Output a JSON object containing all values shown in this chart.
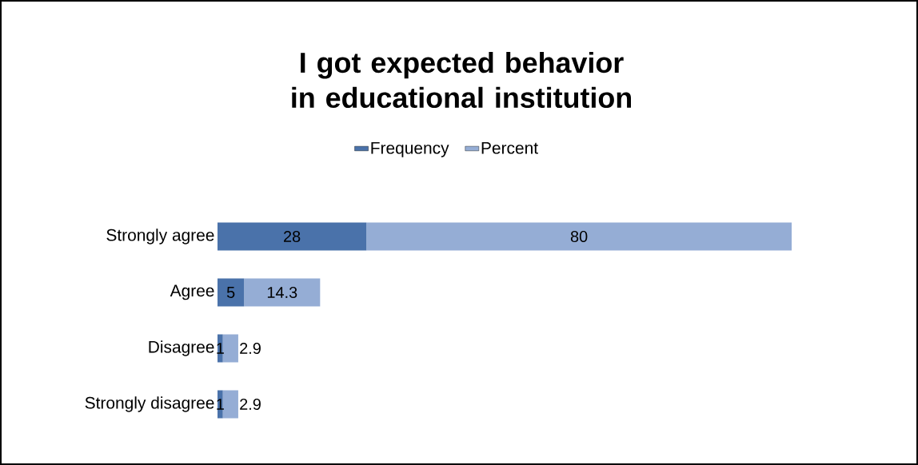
{
  "chart_data": {
    "type": "bar",
    "orientation": "horizontal",
    "stacked": true,
    "title": "I got expected behavior in educational institution",
    "categories": [
      "Strongly agree",
      "Agree",
      "Disagree",
      "Strongly disagree"
    ],
    "series": [
      {
        "name": "Frequency",
        "color": "#4a72aa",
        "values": [
          28,
          5,
          1,
          1
        ]
      },
      {
        "name": "Percent",
        "color": "#95add5",
        "values": [
          80,
          14.3,
          2.9,
          2.9
        ]
      }
    ],
    "data_labels": true,
    "legend": "top"
  }
}
